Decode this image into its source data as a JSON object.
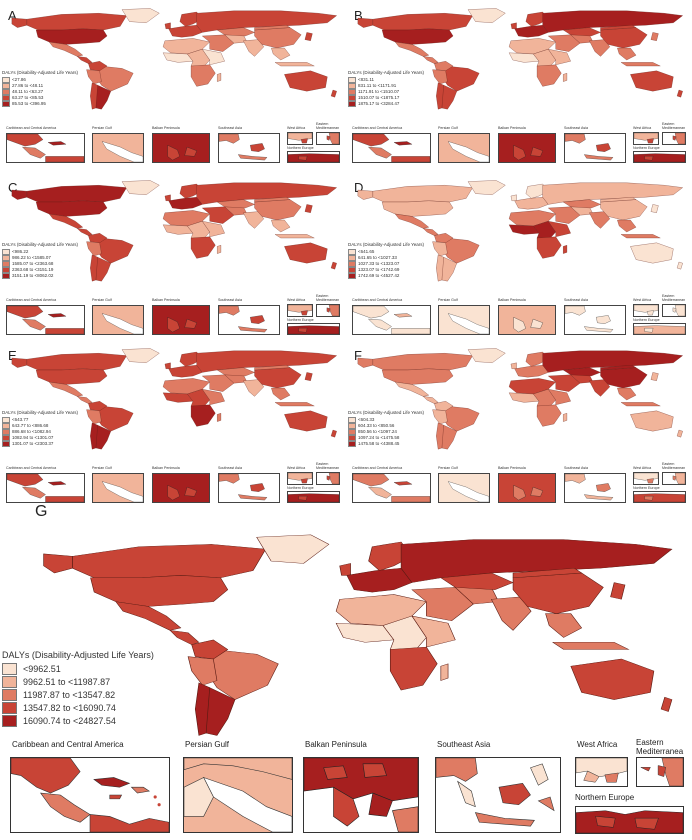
{
  "colors": [
    "#fae3d2",
    "#f1b49a",
    "#df7b63",
    "#c84436",
    "#a61f1f"
  ],
  "small_panels": [
    {
      "letter": "A",
      "legend_title": "DALYs (Disability-Adjusted Life Years)",
      "legend": [
        "<27.86",
        "27.86 to <48.11",
        "48.11 to <63.27",
        "63.27 to <85.53",
        "85.53 to <396.95"
      ],
      "dominant": 3
    },
    {
      "letter": "B",
      "legend_title": "DALYs (Disability-Adjusted Life Years)",
      "legend": [
        "<831.11",
        "831.11 to <1171.91",
        "1171.91 to <1510.07",
        "1510.07 to <1875.17",
        "1875.17 to <3284.47"
      ],
      "dominant": 3
    },
    {
      "letter": "C",
      "legend_title": "DALYs (Disability-Adjusted Life Years)",
      "legend": [
        "<986.22",
        "986.22 to <1585.07",
        "1585.07 to <2363.68",
        "2363.68 to <3151.19",
        "3151.19 to <8062.02"
      ],
      "dominant": 3
    },
    {
      "letter": "D",
      "legend_title": "DALYs (Disability-Adjusted Life Years)",
      "legend": [
        "<641.65",
        "641.65 to <1027.33",
        "1027.33 to <1323.07",
        "1323.07 to <1742.69",
        "1742.69 to <4527.42"
      ],
      "dominant": 0
    },
    {
      "letter": "E",
      "legend_title": "DALYs (Disability-Adjusted Life Years)",
      "legend": [
        "<643.77",
        "643.77 to <886.68",
        "886.68 to <1082.94",
        "1082.94 to <1301.07",
        "1301.07 to <2303.37"
      ],
      "dominant": 3
    },
    {
      "letter": "F",
      "legend_title": "DALYs (Disability-Adjusted Life Years)",
      "legend": [
        "<604.33",
        "604.33 to <850.56",
        "850.56 to <1097.24",
        "1097.24 to <1475.58",
        "1475.58 to <4388.45"
      ],
      "dominant": 2
    }
  ],
  "inset_titles": {
    "caribbean": "Caribbean and Central America",
    "persian": "Persian Gulf",
    "balkan": "Balkan Peninsula",
    "seasia": "Southeast Asia",
    "westafrica": "West Africa",
    "eastmed": "Eastern Mediterranean",
    "northeurope": "Northern Europe"
  },
  "big_panel": {
    "letter": "G",
    "legend_title": "DALYs (Disability-Adjusted Life Years)",
    "legend": [
      "<9962.51",
      "9962.51 to <11987.87",
      "11987.87 to <13547.82",
      "13547.82 to <16090.74",
      "16090.74 to <24827.54"
    ],
    "inset_titles": {
      "caribbean": "Caribbean and Central America",
      "persian": "Persian Gulf",
      "balkan": "Balkan Peninsula",
      "seasia": "Southeast Asia",
      "westafrica": "West Africa",
      "eastmed": "Eastern Mediterranea",
      "northeurope": "Northern Europe"
    }
  }
}
